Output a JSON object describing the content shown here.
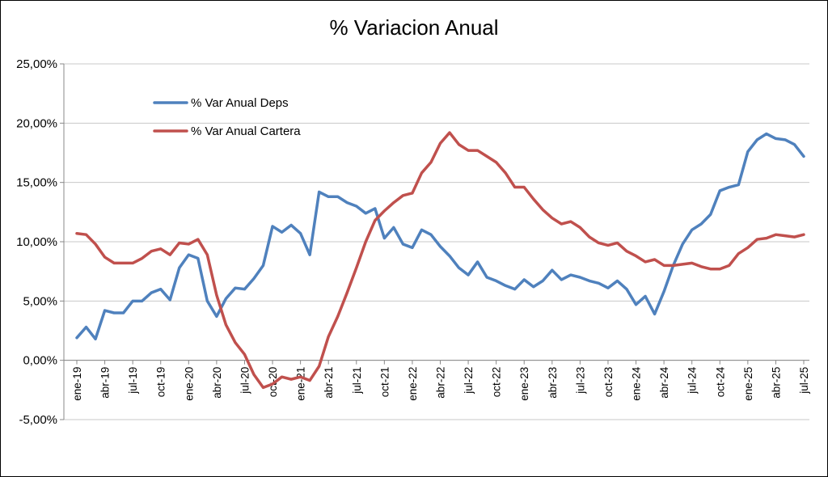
{
  "chart_data": {
    "type": "line",
    "title": "% Variacion Anual",
    "xlabel": "",
    "ylabel": "",
    "ylim": [
      -5,
      25
    ],
    "yticks": [
      -5,
      0,
      5,
      10,
      15,
      20,
      25
    ],
    "ytick_labels": [
      "-5,00%",
      "0,00%",
      "5,00%",
      "10,00%",
      "15,00%",
      "20,00%",
      "25,00%"
    ],
    "xtick_labels": [
      "ene-19",
      "abr-19",
      "jul-19",
      "oct-19",
      "ene-20",
      "abr-20",
      "jul-20",
      "oct-20",
      "ene-21",
      "abr-21",
      "jul-21",
      "oct-21",
      "ene-22",
      "abr-22",
      "jul-22",
      "oct-22",
      "ene-23",
      "abr-23",
      "jul-23",
      "oct-23",
      "ene-24",
      "abr-24",
      "jul-24",
      "oct-24",
      "ene-25",
      "abr-25",
      "jul-25"
    ],
    "x_start": "2019-01",
    "x_end": "2025-07",
    "grid": "horizontal",
    "legend_position": "top-left",
    "series": [
      {
        "name": "% Var Anual Deps",
        "color": "#4F81BD",
        "values": [
          1.9,
          2.8,
          1.8,
          4.2,
          4.0,
          4.0,
          5.0,
          5.0,
          5.7,
          6.0,
          5.1,
          7.8,
          8.9,
          8.6,
          5.0,
          3.7,
          5.2,
          6.1,
          6.0,
          6.9,
          8.0,
          11.3,
          10.8,
          11.4,
          10.7,
          8.9,
          14.2,
          13.8,
          13.8,
          13.3,
          13.0,
          12.4,
          12.8,
          10.3,
          11.2,
          9.8,
          9.5,
          11.0,
          10.6,
          9.6,
          8.8,
          7.8,
          7.2,
          8.3,
          7.0,
          6.7,
          6.3,
          6.0,
          6.8,
          6.2,
          6.7,
          7.6,
          6.8,
          7.2,
          7.0,
          6.7,
          6.5,
          6.1,
          6.7,
          6.0,
          4.7,
          5.4,
          3.9,
          5.8,
          8.0,
          9.8,
          11.0,
          11.5,
          12.3,
          14.3,
          14.6,
          14.8,
          17.6,
          18.6,
          19.1,
          18.7,
          18.6,
          18.2,
          17.2
        ]
      },
      {
        "name": "% Var Anual Cartera",
        "color": "#C0504D",
        "values": [
          10.7,
          10.6,
          9.8,
          8.7,
          8.2,
          8.2,
          8.2,
          8.6,
          9.2,
          9.4,
          8.9,
          9.9,
          9.8,
          10.2,
          8.9,
          5.5,
          3.0,
          1.5,
          0.5,
          -1.2,
          -2.3,
          -2.0,
          -1.4,
          -1.6,
          -1.4,
          -1.7,
          -0.5,
          2.0,
          3.7,
          5.7,
          7.8,
          10.0,
          11.8,
          12.6,
          13.3,
          13.9,
          14.1,
          15.8,
          16.7,
          18.3,
          19.2,
          18.2,
          17.7,
          17.7,
          17.2,
          16.7,
          15.8,
          14.6,
          14.6,
          13.6,
          12.7,
          12.0,
          11.5,
          11.7,
          11.2,
          10.4,
          9.9,
          9.7,
          9.9,
          9.2,
          8.8,
          8.3,
          8.5,
          8.0,
          8.0,
          8.1,
          8.2,
          7.9,
          7.7,
          7.7,
          8.0,
          9.0,
          9.5,
          10.2,
          10.3,
          10.6,
          10.5,
          10.4,
          10.6
        ]
      }
    ]
  }
}
